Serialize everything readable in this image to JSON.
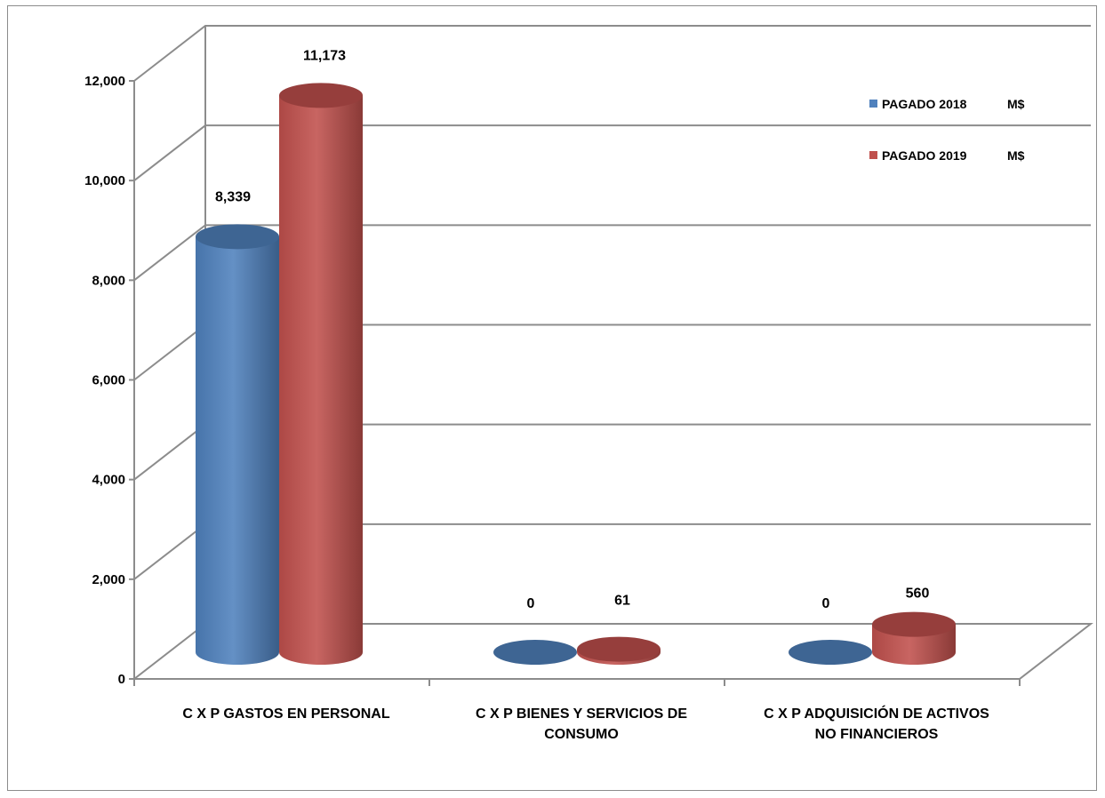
{
  "chart_data": {
    "type": "bar",
    "style": "3d-cylinder",
    "categories": [
      [
        "C X P GASTOS EN PERSONAL"
      ],
      [
        "C X P BIENES Y SERVICIOS DE",
        "CONSUMO"
      ],
      [
        "C X P ADQUISICIÓN DE ACTIVOS",
        "NO FINANCIEROS"
      ]
    ],
    "series": [
      {
        "name": "PAGADO 2018",
        "unit": "M$",
        "color": "#4f81bd",
        "values": [
          8339,
          0,
          0
        ],
        "labels": [
          "8,339",
          "0",
          "0"
        ]
      },
      {
        "name": "PAGADO 2019",
        "unit": "M$",
        "color": "#c0504d",
        "values": [
          11173,
          61,
          560
        ],
        "labels": [
          "11,173",
          "61",
          "560"
        ]
      }
    ],
    "ylim": [
      0,
      12000
    ],
    "yticks": [
      0,
      2000,
      4000,
      6000,
      8000,
      10000,
      12000
    ],
    "ytick_labels": [
      "0",
      "2,000",
      "4,000",
      "6,000",
      "8,000",
      "10,000",
      "12,000"
    ],
    "grid": true,
    "legend_position": "top-right"
  }
}
